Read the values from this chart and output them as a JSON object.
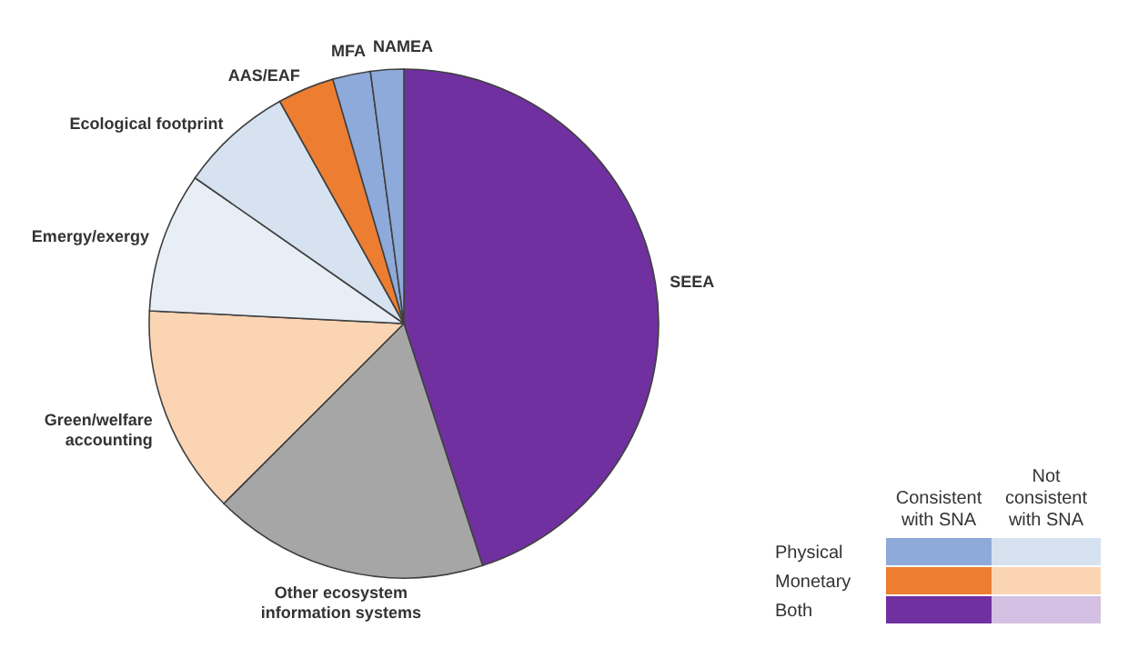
{
  "chart_data": {
    "type": "pie",
    "categories": [
      "SEEA",
      "Other ecosystem\ninformation systems",
      "Green/welfare\naccounting",
      "Emergy/exergy",
      "Ecological footprint",
      "AAS/EAF",
      "MFA",
      "NAMEA"
    ],
    "values": [
      45,
      17.5,
      13.3,
      8.9,
      7.2,
      3.6,
      2.4,
      2.1
    ],
    "colors": [
      "#7030a0",
      "#a6a6a6",
      "#fbd4b4",
      "#e8eef6",
      "#d6e2f0",
      "#ed7d31",
      "#8eaadb",
      "#8eaadb"
    ],
    "annotations": [
      "Consistent\nwith SNA",
      "Not\nconsistent\nwith SNA",
      "Physical",
      "Monetary",
      "Both"
    ]
  }
}
